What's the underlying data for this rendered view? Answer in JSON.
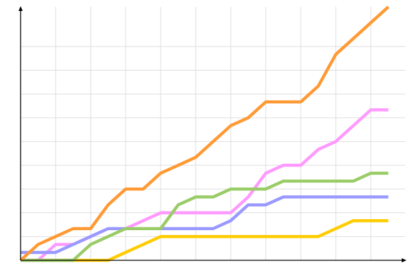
{
  "chart_data": {
    "type": "line",
    "title": "",
    "xlabel": "",
    "ylabel": "",
    "x": [
      0,
      1,
      2,
      3,
      4,
      5,
      6,
      7,
      8,
      9,
      10,
      11,
      12,
      13,
      14,
      15,
      16,
      17,
      18,
      19,
      20,
      21
    ],
    "xlim": [
      0,
      21.8
    ],
    "ylim": [
      0,
      32
    ],
    "x_grid_step": 2,
    "y_grid_step": 3,
    "grid": true,
    "legend": "none",
    "series": [
      {
        "color": "#FFCC00",
        "values": [
          0,
          0,
          0,
          0,
          0,
          0,
          1,
          2,
          3,
          3,
          3,
          3,
          3,
          3,
          3,
          3,
          3,
          3,
          4,
          5,
          5,
          5
        ]
      },
      {
        "color": "#FF99FF",
        "values": [
          0,
          0,
          2,
          2,
          3,
          4,
          4,
          5,
          6,
          6,
          6,
          6,
          6,
          8,
          11,
          12,
          12,
          14,
          15,
          17,
          19,
          19
        ]
      },
      {
        "color": "#9999FF",
        "values": [
          1,
          1,
          1,
          2,
          3,
          4,
          4,
          4,
          4,
          4,
          4,
          4,
          5,
          7,
          7,
          8,
          8,
          8,
          8,
          8,
          8,
          8
        ]
      },
      {
        "color": "#99CC66",
        "values": [
          0,
          0,
          0,
          0,
          2,
          3,
          4,
          4,
          4,
          7,
          8,
          8,
          9,
          9,
          9,
          10,
          10,
          10,
          10,
          10,
          11,
          11
        ]
      },
      {
        "color": "#FF9933",
        "values": [
          0,
          2,
          3,
          4,
          4,
          7,
          9,
          9,
          11,
          12,
          13,
          15,
          17,
          18,
          20,
          20,
          20,
          22,
          26,
          28,
          30,
          32
        ]
      }
    ]
  }
}
